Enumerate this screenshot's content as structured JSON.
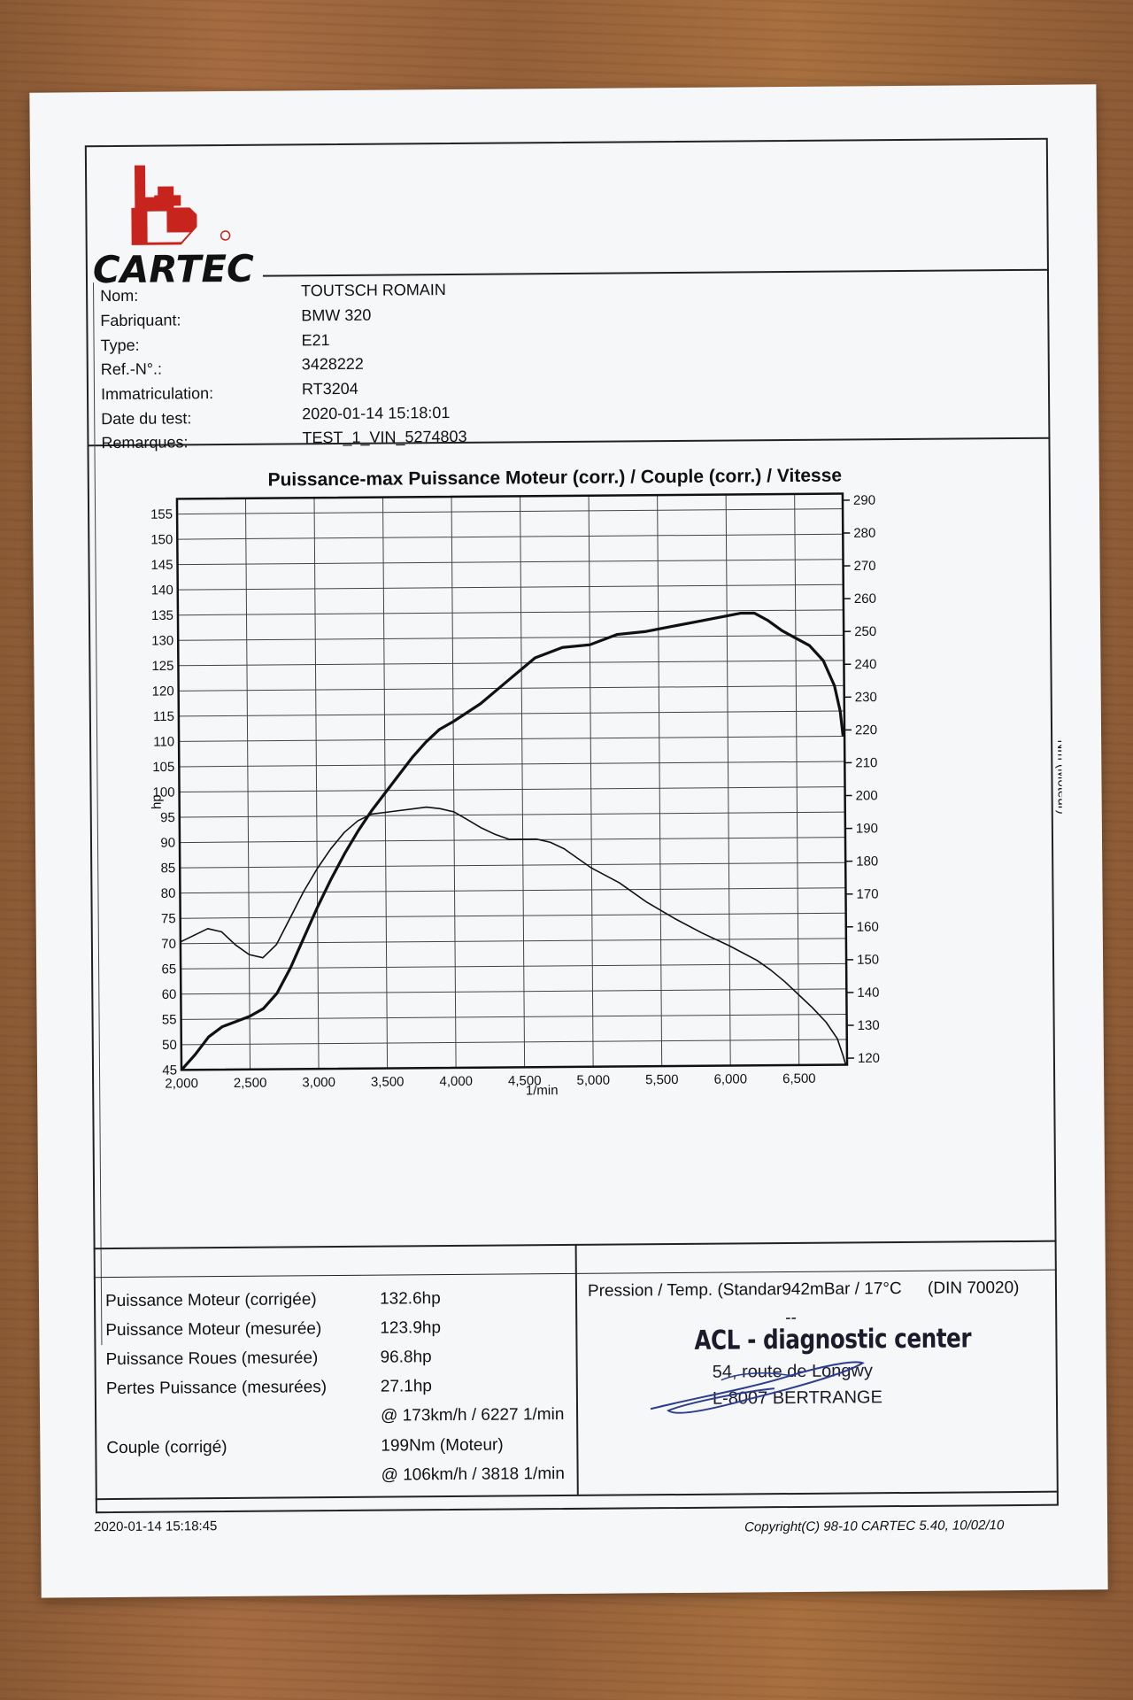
{
  "brand": "CARTEC",
  "info": [
    {
      "label": "Nom:",
      "value": "TOUTSCH ROMAIN"
    },
    {
      "label": "Fabriquant:",
      "value": "BMW 320"
    },
    {
      "label": "Type:",
      "value": "E21"
    },
    {
      "label": "Ref.-N°.:",
      "value": "3428222"
    },
    {
      "label": "Immatriculation:",
      "value": "RT3204"
    },
    {
      "label": "Date du test:",
      "value": "2020-01-14 15:18:01"
    },
    {
      "label": "Remarques:",
      "value": "TEST_1_VIN_5274803"
    }
  ],
  "chart_data": {
    "type": "line",
    "title": "Puissance-max Puissance Moteur (corr.) / Couple (corr.) / Vitesse",
    "xlabel": "1/min",
    "ylabel_left": "hp",
    "ylabel_right": "Nm (Moteur)",
    "xlim": [
      2000,
      6850
    ],
    "ylim_left": [
      45,
      158
    ],
    "ylim_right": [
      118,
      292
    ],
    "x_ticks": [
      2000,
      2500,
      3000,
      3500,
      4000,
      4500,
      5000,
      5500,
      6000,
      6500
    ],
    "x_tick_labels": [
      "2,000",
      "2,500",
      "3,000",
      "3,500",
      "4,000",
      "4,500",
      "5,000",
      "5,500",
      "6,000",
      "6,500"
    ],
    "y_left_ticks": [
      45,
      50,
      55,
      60,
      65,
      70,
      75,
      80,
      85,
      90,
      95,
      100,
      105,
      110,
      115,
      120,
      125,
      130,
      135,
      140,
      145,
      150,
      155
    ],
    "y_right_ticks": [
      120,
      130,
      140,
      150,
      160,
      170,
      180,
      190,
      200,
      210,
      220,
      230,
      240,
      250,
      260,
      270,
      280,
      290
    ],
    "grid": true,
    "series": [
      {
        "axis": "left",
        "x": [
          2000,
          2100,
          2200,
          2300,
          2400,
          2500,
          2600,
          2700,
          2800,
          2900,
          3000,
          3100,
          3200,
          3300,
          3400,
          3500,
          3600,
          3700,
          3800,
          3900,
          4000,
          4200,
          4400,
          4600,
          4800,
          5000,
          5200,
          5400,
          5600,
          5800,
          6000,
          6100,
          6200,
          6300,
          6400,
          6500,
          6600,
          6700,
          6780,
          6820,
          6840
        ],
        "values": [
          45,
          48,
          51.5,
          53.5,
          54.5,
          55.5,
          57,
          60,
          65,
          71,
          77,
          82.5,
          87.5,
          92,
          96,
          99.5,
          103,
          106.5,
          109.5,
          112,
          113.5,
          117,
          121.5,
          126,
          128,
          128.5,
          130.5,
          131,
          132,
          133,
          134,
          134.5,
          134.5,
          133,
          131,
          129.5,
          128,
          125,
          120,
          115,
          110
        ]
      },
      {
        "axis": "right",
        "x": [
          2000,
          2100,
          2200,
          2300,
          2400,
          2500,
          2600,
          2700,
          2800,
          2900,
          3000,
          3100,
          3200,
          3300,
          3400,
          3500,
          3600,
          3700,
          3800,
          3900,
          4000,
          4100,
          4200,
          4300,
          4400,
          4500,
          4600,
          4700,
          4800,
          4900,
          5000,
          5200,
          5400,
          5600,
          5800,
          6000,
          6200,
          6300,
          6400,
          6500,
          6600,
          6700,
          6780,
          6820,
          6840
        ],
        "values": [
          157,
          159,
          161,
          160,
          156,
          153,
          152,
          156,
          164,
          172,
          179,
          185,
          190,
          193.5,
          195.5,
          196,
          196.5,
          197,
          197.5,
          197,
          196,
          193.5,
          191,
          189,
          187.5,
          187.5,
          187.5,
          186.5,
          184.5,
          181.5,
          178.5,
          174,
          168,
          163,
          158.5,
          154.5,
          150,
          147,
          143.5,
          139.5,
          135.5,
          131,
          126,
          121,
          118
        ]
      }
    ]
  },
  "results": {
    "rows": [
      {
        "label": "Puissance Moteur (corrigée)",
        "value": "132.6hp"
      },
      {
        "label": "Puissance Moteur (mesurée)",
        "value": "123.9hp"
      },
      {
        "label": "Puissance Roues (mesurée)",
        "value": "96.8hp"
      },
      {
        "label": "Pertes Puissance (mesurées)",
        "value": "27.1hp"
      },
      {
        "label": "",
        "value": "@ 173km/h / 6227 1/min"
      },
      {
        "label": "Couple (corrigé)",
        "value": "199Nm (Moteur)"
      },
      {
        "label": "",
        "value": "@ 106km/h / 3818 1/min"
      }
    ],
    "pressure": "Pression / Temp. (Standar942mBar / 17°C",
    "din": "(DIN 70020)",
    "dash": "--"
  },
  "stamp": {
    "title": "ACL - diagnostic center",
    "address": "54, route de Longwy",
    "city": "L-8007  BERTRANGE"
  },
  "footer": {
    "left": "2020-01-14 15:18:45",
    "right": "Copyright(C) 98-10 CARTEC 5.40, 10/02/10"
  },
  "colors": {
    "logo_red": "#c8241e",
    "ink": "#111111"
  }
}
